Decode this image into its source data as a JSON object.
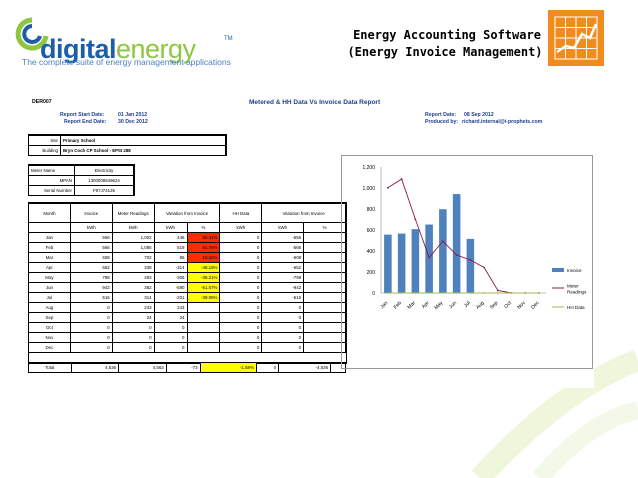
{
  "header": {
    "logo_digital": "digital",
    "logo_energy": "energy",
    "logo_tm": "TM",
    "tagline": "The complete suite of energy management applications",
    "title_line1": "Energy Accounting Software",
    "title_line2": "(Energy Invoice Management)",
    "brand_color": "#1d5ea8",
    "accent_color": "#f08c1c"
  },
  "report": {
    "code": "DER007",
    "title": "Metered & HH Data  Vs  Invoice Data Report",
    "start_label": "Report Start Date:",
    "start_value": "01 Jan 2012",
    "end_label": "Report End Date:",
    "end_value": "30  Dec 2012",
    "report_date_label": "Report Date:",
    "report_date_value": "08  Sep 2012",
    "produced_label": "Produced by:",
    "produced_value": "richard.internal@i-prophets.com",
    "site_label": "Site",
    "site_value": "Primary School",
    "building_label": "Building",
    "building_value": "Bryn Coch CP School - EPSI 288",
    "meter_name_label": "Meter Name",
    "meter_name_value": "Electricity",
    "mpan_label": "MPAN",
    "mpan_value": "1300009549624",
    "serial_label": "Serial Number",
    "serial_value": "F97J74126",
    "col_month": "Month",
    "col_invoice": "Invoice",
    "col_meter": "Meter Readings",
    "col_variation1": "Variation from Invoice",
    "col_hh": "HH Data",
    "col_variation2": "Variation from Invoice",
    "unit_kwh": "kWh",
    "unit_pct": "%",
    "rows": [
      {
        "m": "Jan",
        "inv": "556",
        "met": "1,002",
        "v": "446",
        "p": "80.31%",
        "hh": "0",
        "v2": "-556",
        "flag": "red"
      },
      {
        "m": "Feb",
        "inv": "566",
        "met": "1,085",
        "v": "519",
        "p": "91.70%",
        "hh": "0",
        "v2": "-566",
        "flag": "red"
      },
      {
        "m": "Mar",
        "inv": "608",
        "met": "702",
        "v": "95",
        "p": "15.62%",
        "hh": "0",
        "v2": "-608",
        "flag": "red"
      },
      {
        "m": "Apr",
        "inv": "652",
        "met": "338",
        "v": "-314",
        "p": "-48.18%",
        "hh": "0",
        "v2": "-652",
        "flag": "yellow"
      },
      {
        "m": "May",
        "inv": "798",
        "met": "493",
        "v": "-305",
        "p": "-38.21%",
        "hh": "0",
        "v2": "-798",
        "flag": "yellow"
      },
      {
        "m": "Jun",
        "inv": "942",
        "met": "362",
        "v": "-580",
        "p": "-61.57%",
        "hh": "0",
        "v2": "-942",
        "flag": "yellow"
      },
      {
        "m": "Jul",
        "inv": "515",
        "met": "314",
        "v": "-201",
        "p": "-39.05%",
        "hh": "0",
        "v2": "-515",
        "flag": "yellow"
      },
      {
        "m": "Aug",
        "inv": "0",
        "met": "243",
        "v": "243",
        "p": "",
        "hh": "0",
        "v2": "0",
        "flag": ""
      },
      {
        "m": "Sep",
        "inv": "0",
        "met": "24",
        "v": "24",
        "p": "",
        "hh": "0",
        "v2": "0",
        "flag": ""
      },
      {
        "m": "Oct",
        "inv": "0",
        "met": "0",
        "v": "0",
        "p": "",
        "hh": "0",
        "v2": "0",
        "flag": ""
      },
      {
        "m": "Nov",
        "inv": "0",
        "met": "0",
        "v": "0",
        "p": "",
        "hh": "0",
        "v2": "0",
        "flag": ""
      },
      {
        "m": "Dec",
        "inv": "0",
        "met": "0",
        "v": "0",
        "p": "",
        "hh": "0",
        "v2": "0",
        "flag": ""
      }
    ],
    "total": {
      "m": "Total",
      "inv": "4,636",
      "met": "4,563",
      "v": "-73",
      "p": "-1.58%",
      "hh": "0",
      "v2": "-4,636",
      "flag": "yellow"
    },
    "colors": {
      "red": "#ff2a00",
      "yellow": "#ffff00"
    }
  },
  "chart_data": {
    "type": "bar",
    "categories": [
      "Jan",
      "Feb",
      "Mar",
      "Apr",
      "May",
      "Jun",
      "Jul",
      "Aug",
      "Sep",
      "Oct",
      "Nov",
      "Dec"
    ],
    "series": [
      {
        "name": "Invoice",
        "kind": "bar",
        "color": "#4f81bd",
        "values": [
          556,
          566,
          608,
          652,
          798,
          942,
          515,
          0,
          0,
          0,
          0,
          0
        ]
      },
      {
        "name": "Meter Readings",
        "kind": "line",
        "color": "#8b1a4a",
        "values": [
          1002,
          1085,
          702,
          338,
          493,
          362,
          314,
          243,
          24,
          0,
          0,
          0
        ]
      },
      {
        "name": "HH Data",
        "kind": "line",
        "color": "#9bbb59",
        "values": [
          0,
          0,
          0,
          0,
          0,
          0,
          0,
          0,
          0,
          0,
          0,
          0
        ]
      }
    ],
    "yticks": [
      "0",
      "200",
      "400",
      "600",
      "800",
      "1,000",
      "1,200"
    ],
    "ylim": [
      0,
      1200
    ],
    "grid": false,
    "legend": "right"
  }
}
